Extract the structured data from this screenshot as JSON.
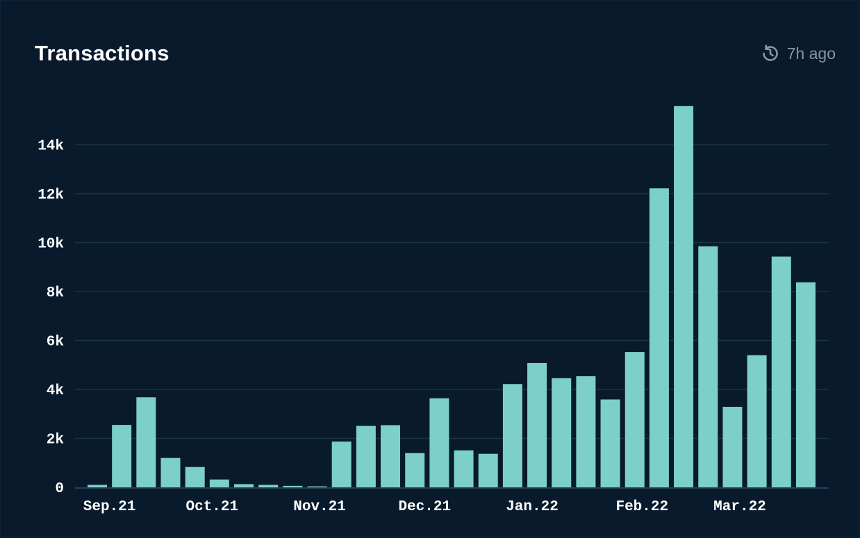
{
  "header": {
    "title": "Transactions",
    "updated": "7h ago"
  },
  "colors": {
    "bar": "#7dcfca",
    "grid": "#1d3447",
    "axis": "#2a4155"
  },
  "chart_data": {
    "type": "bar",
    "title": "Transactions",
    "xlabel": "",
    "ylabel": "",
    "ylim": [
      0,
      16000
    ],
    "yticks": [
      0,
      2000,
      4000,
      6000,
      8000,
      10000,
      12000,
      14000
    ],
    "ytick_labels": [
      "0",
      "2k",
      "4k",
      "6k",
      "8k",
      "10k",
      "12k",
      "14k"
    ],
    "xtick_labels": [
      {
        "label": "Sep.21",
        "index": 0.5
      },
      {
        "label": "Oct.21",
        "index": 4.7
      },
      {
        "label": "Nov.21",
        "index": 9.1
      },
      {
        "label": "Dec.21",
        "index": 13.4
      },
      {
        "label": "Jan.22",
        "index": 17.8
      },
      {
        "label": "Feb.22",
        "index": 22.3
      },
      {
        "label": "Mar.22",
        "index": 26.3
      }
    ],
    "grid": true,
    "values": [
      100,
      2550,
      3680,
      1200,
      830,
      320,
      130,
      100,
      60,
      40,
      1870,
      2510,
      2540,
      1400,
      3640,
      1510,
      1370,
      4220,
      5080,
      4460,
      4540,
      3590,
      5530,
      12220,
      15580,
      9850,
      3290,
      5400,
      9430,
      8380
    ]
  }
}
